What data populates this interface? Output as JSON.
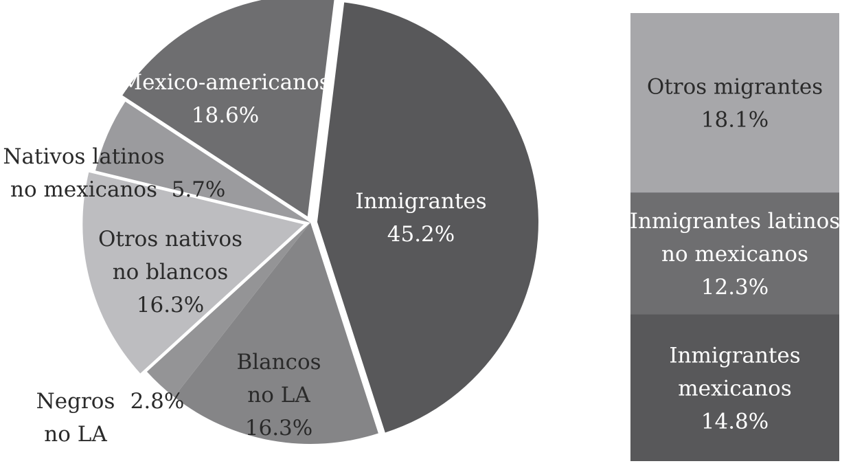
{
  "chart_data": {
    "type": "pie",
    "slices": [
      {
        "label": [
          "Inmigrantes"
        ],
        "value_label": "45.2%",
        "value": 45.2,
        "color": "#58585a",
        "text": "light",
        "exploded": true
      },
      {
        "label": [
          "Blancos",
          "no LA"
        ],
        "value_label": "16.3%",
        "value": 16.3,
        "color": "#858587",
        "text": "dark"
      },
      {
        "label": [
          "Negros",
          "no LA"
        ],
        "value_label": "2.8%",
        "value": 2.8,
        "color": "#949496",
        "text": "dark"
      },
      {
        "label": [
          "Otros nativos",
          "no blancos"
        ],
        "value_label": "16.3%",
        "value": 16.3,
        "color": "#bdbdc0",
        "text": "dark",
        "exploded": true
      },
      {
        "label": [
          "Nativos latinos",
          "no mexicanos"
        ],
        "value_label": "5.7%",
        "value": 5.7,
        "color": "#9b9b9e",
        "text": "dark"
      },
      {
        "label": [
          "Mexico-americanos"
        ],
        "value_label": "18.6%",
        "value": 18.6,
        "color": "#6e6e70",
        "text": "light",
        "exploded": true
      }
    ],
    "breakdown": {
      "of": "Inmigrantes",
      "segments": [
        {
          "label": [
            "Otros migrantes"
          ],
          "value_label": "18.1%",
          "value": 18.1,
          "color": "#a7a7aa",
          "text": "dark"
        },
        {
          "label": [
            "Inmigrantes latinos",
            "no mexicanos"
          ],
          "value_label": "12.3%",
          "value": 12.3,
          "color": "#6e6e70",
          "text": "light"
        },
        {
          "label": [
            "Inmigrantes",
            "mexicanos"
          ],
          "value_label": "14.8%",
          "value": 14.8,
          "color": "#58585a",
          "text": "light"
        }
      ]
    }
  }
}
